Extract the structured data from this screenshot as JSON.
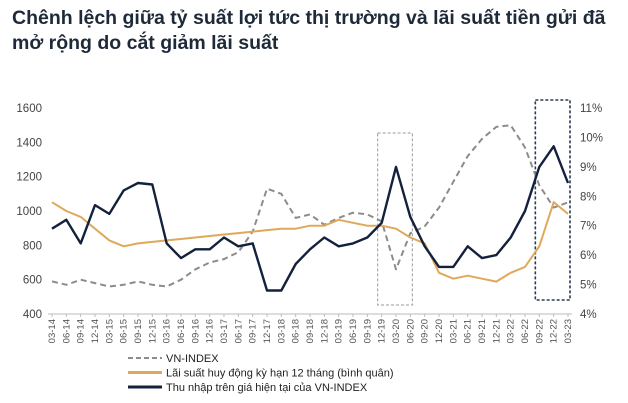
{
  "title": "Chênh lệch giữa tỷ suất lợi tức thị trường và lãi suất tiền gửi đã mở rộng do cắt giảm lãi suất",
  "chart_data": {
    "type": "line",
    "title": "Chênh lệch giữa tỷ suất lợi tức thị trường và lãi suất tiền gửi đã mở rộng do cắt giảm lãi suất",
    "categories": [
      "03-14",
      "06-14",
      "09-14",
      "12-14",
      "03-15",
      "06-15",
      "09-15",
      "12-15",
      "03-16",
      "06-16",
      "09-16",
      "12-16",
      "03-17",
      "06-17",
      "09-17",
      "12-17",
      "03-18",
      "06-18",
      "09-18",
      "12-18",
      "03-19",
      "06-19",
      "09-19",
      "12-19",
      "03-20",
      "06-20",
      "09-20",
      "12-20",
      "03-21",
      "06-21",
      "09-21",
      "12-21",
      "03-22",
      "06-22",
      "09-22",
      "12-22",
      "03-23"
    ],
    "y_left": {
      "range": [
        400,
        1600
      ],
      "ticks": [
        400,
        600,
        800,
        1000,
        1200,
        1400,
        1600
      ]
    },
    "y_right": {
      "range": [
        4,
        11
      ],
      "ticks": [
        "4%",
        "5%",
        "6%",
        "7%",
        "8%",
        "9%",
        "10%",
        "11%"
      ]
    },
    "grid": false,
    "legend_placement": "bottom",
    "series": [
      {
        "name": "VN-INDEX",
        "axis": "left",
        "style": "dashed",
        "color": "#8c8c8c",
        "values": [
          590,
          570,
          600,
          580,
          560,
          570,
          590,
          570,
          560,
          600,
          660,
          700,
          720,
          760,
          880,
          1130,
          1100,
          960,
          980,
          920,
          960,
          990,
          980,
          940,
          660,
          870,
          910,
          1020,
          1170,
          1320,
          1420,
          1490,
          1500,
          1370,
          1150,
          1020,
          1050
        ]
      },
      {
        "name": "Lãi suất huy động kỳ hạn 12 tháng (bình quân)",
        "axis": "right",
        "style": "solid",
        "color": "#e0a85a",
        "values": [
          7.8,
          7.5,
          7.3,
          6.9,
          6.5,
          6.3,
          6.4,
          6.45,
          6.5,
          6.55,
          6.6,
          6.65,
          6.7,
          6.75,
          6.8,
          6.85,
          6.9,
          6.9,
          7.0,
          7.0,
          7.2,
          7.1,
          7.0,
          7.0,
          6.9,
          6.6,
          6.4,
          5.4,
          5.2,
          5.3,
          5.2,
          5.1,
          5.4,
          5.6,
          6.3,
          7.8,
          7.4
        ]
      },
      {
        "name": "Thu nhập trên giá hiện tại của VN-INDEX",
        "axis": "right",
        "style": "solid",
        "color": "#14213d",
        "values": [
          6.9,
          7.2,
          6.4,
          7.7,
          7.4,
          8.2,
          8.45,
          8.4,
          6.4,
          5.9,
          6.2,
          6.2,
          6.6,
          6.3,
          6.4,
          4.8,
          4.8,
          5.7,
          6.2,
          6.6,
          6.3,
          6.4,
          6.6,
          7.1,
          9.0,
          7.3,
          6.3,
          5.6,
          5.6,
          6.3,
          5.9,
          6.0,
          6.6,
          7.5,
          9.0,
          9.7,
          8.45
        ]
      }
    ],
    "highlight_ranges": [
      {
        "from": "12-19",
        "to": "06-20",
        "style": "dashed",
        "color": "#999999"
      },
      {
        "from": "09-22",
        "to": "03-23",
        "style": "dashed",
        "color": "#2b3a55"
      }
    ]
  }
}
